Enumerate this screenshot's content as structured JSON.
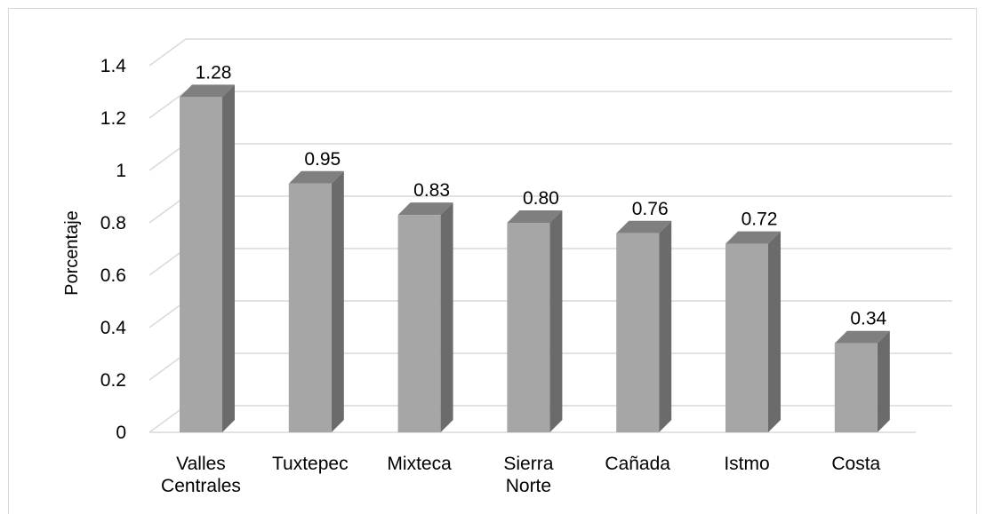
{
  "chart_data": {
    "type": "bar",
    "style": "3d-column",
    "categories": [
      [
        "Valles",
        "Centrales"
      ],
      [
        "Tuxtepec"
      ],
      [
        "Mixteca"
      ],
      [
        "Sierra",
        "Norte"
      ],
      [
        "Cañada"
      ],
      [
        "Istmo"
      ],
      [
        "Costa"
      ]
    ],
    "values": [
      1.28,
      0.95,
      0.83,
      0.8,
      0.76,
      0.72,
      0.34
    ],
    "data_labels": [
      "1.28",
      "0.95",
      "0.83",
      "0.80",
      "0.76",
      "0.72",
      "0.34"
    ],
    "title": "",
    "xlabel": "",
    "ylabel": "Porcentaje",
    "ylim": [
      0,
      1.4
    ],
    "yticks": [
      0,
      0.2,
      0.4,
      0.6,
      0.8,
      1,
      1.2,
      1.4
    ],
    "ytick_labels": [
      "0",
      "0.2",
      "0.4",
      "0.6",
      "0.8",
      "1",
      "1.2",
      "1.4"
    ],
    "grid": true,
    "legend": "none",
    "colors": {
      "bar_front": "#a6a6a6",
      "bar_top": "#7f7f7f",
      "bar_side": "#6b6b6b",
      "gridline": "#d9d9d9",
      "text": "#000000"
    }
  }
}
